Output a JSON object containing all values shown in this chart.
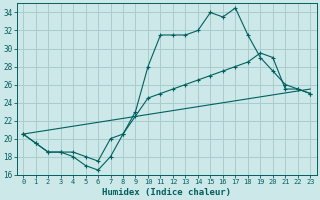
{
  "xlabel": "Humidex (Indice chaleur)",
  "xlim": [
    -0.5,
    23.5
  ],
  "ylim": [
    16,
    35
  ],
  "yticks": [
    16,
    18,
    20,
    22,
    24,
    26,
    28,
    30,
    32,
    34
  ],
  "xticks": [
    0,
    1,
    2,
    3,
    4,
    5,
    6,
    7,
    8,
    9,
    10,
    11,
    12,
    13,
    14,
    15,
    16,
    17,
    18,
    19,
    20,
    21,
    22,
    23
  ],
  "bg_color": "#cce8e8",
  "grid_color": "#aacccc",
  "line_color": "#006060",
  "lines": [
    {
      "x": [
        0,
        1,
        2,
        3,
        4,
        5,
        6,
        7,
        8,
        9,
        10,
        11,
        12,
        13,
        14,
        15,
        16,
        17,
        18,
        19,
        20,
        21,
        22,
        23
      ],
      "y": [
        20.5,
        19.5,
        18.5,
        18.5,
        18.0,
        17.0,
        16.5,
        18.0,
        20.5,
        23.0,
        28.0,
        31.5,
        31.5,
        31.5,
        32.0,
        34.0,
        33.5,
        34.5,
        31.5,
        29.0,
        27.5,
        26.0,
        25.5,
        25.0
      ],
      "marker": true
    },
    {
      "x": [
        0,
        1,
        2,
        3,
        4,
        5,
        6,
        7,
        8,
        9,
        10,
        11,
        12,
        13,
        14,
        15,
        16,
        17,
        18,
        19,
        20,
        21,
        22,
        23
      ],
      "y": [
        20.5,
        19.5,
        18.5,
        18.5,
        18.5,
        18.0,
        17.5,
        20.0,
        20.5,
        22.5,
        24.5,
        25.0,
        25.5,
        26.0,
        26.5,
        27.0,
        27.5,
        28.0,
        28.5,
        29.5,
        29.0,
        25.5,
        25.5,
        25.0
      ],
      "marker": true
    },
    {
      "x": [
        0,
        23
      ],
      "y": [
        20.5,
        25.5
      ],
      "marker": false
    }
  ]
}
